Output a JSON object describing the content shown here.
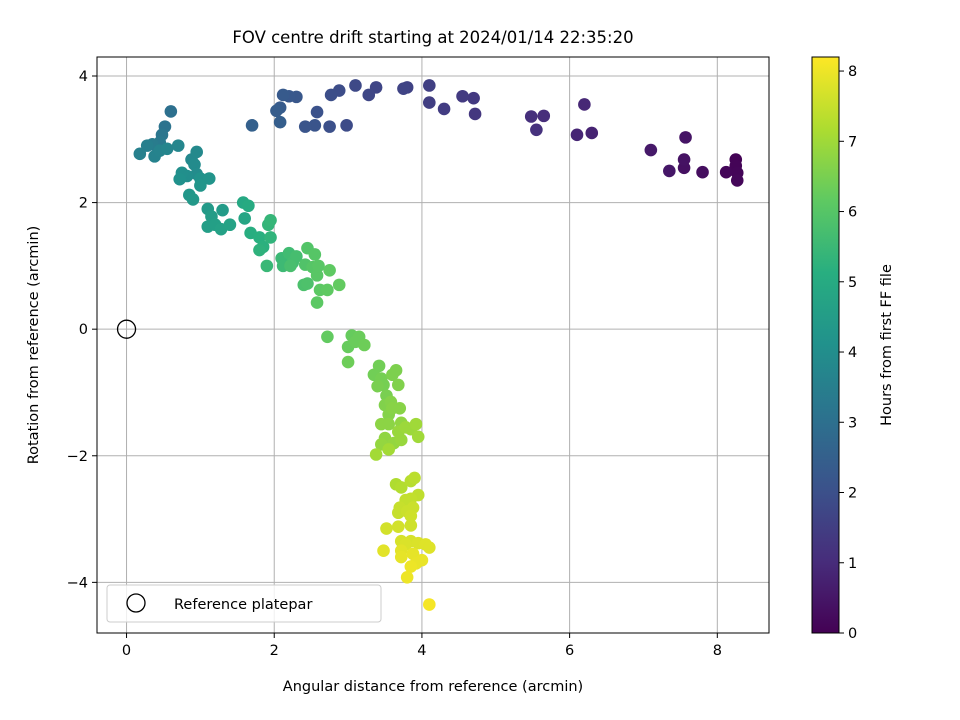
{
  "chart_data": {
    "type": "scatter",
    "title": "FOV centre drift starting at 2024/01/14 22:35:20",
    "xlabel": "Angular distance from reference (arcmin)",
    "ylabel": "Rotation from reference (arcmin)",
    "xlim": [
      -0.4,
      8.7
    ],
    "ylim": [
      -4.8,
      4.3
    ],
    "xticks": [
      0,
      2,
      4,
      6,
      8
    ],
    "xtick_labels": [
      "0",
      "2",
      "4",
      "6",
      "8"
    ],
    "yticks": [
      -4,
      -2,
      0,
      2,
      4
    ],
    "ytick_labels": [
      "−4",
      "−2",
      "0",
      "2",
      "4"
    ],
    "grid": true,
    "legend": {
      "placement": "lower-left",
      "entries": [
        {
          "label": "Reference platepar",
          "marker": "open-circle"
        }
      ]
    },
    "reference_point": {
      "x": 0,
      "y": 0
    },
    "colorbar": {
      "label": "Hours from first FF file",
      "colormap": "viridis",
      "range": [
        0,
        8.2
      ],
      "ticks": [
        0,
        1,
        2,
        3,
        4,
        5,
        6,
        7,
        8
      ],
      "tick_labels": [
        "0",
        "1",
        "2",
        "3",
        "4",
        "5",
        "6",
        "7",
        "8"
      ]
    },
    "points": [
      {
        "x": 8.25,
        "y": 2.68,
        "h": 0.05
      },
      {
        "x": 8.25,
        "y": 2.58,
        "h": 0.07
      },
      {
        "x": 8.27,
        "y": 2.47,
        "h": 0.1
      },
      {
        "x": 8.12,
        "y": 2.48,
        "h": 0.12
      },
      {
        "x": 8.27,
        "y": 2.35,
        "h": 0.14
      },
      {
        "x": 7.8,
        "y": 2.48,
        "h": 0.3
      },
      {
        "x": 7.55,
        "y": 2.55,
        "h": 0.35
      },
      {
        "x": 7.55,
        "y": 2.68,
        "h": 0.4
      },
      {
        "x": 7.57,
        "y": 3.03,
        "h": 0.45
      },
      {
        "x": 7.35,
        "y": 2.5,
        "h": 0.5
      },
      {
        "x": 7.1,
        "y": 2.83,
        "h": 0.55
      },
      {
        "x": 6.3,
        "y": 3.1,
        "h": 0.8
      },
      {
        "x": 6.1,
        "y": 3.07,
        "h": 0.85
      },
      {
        "x": 6.2,
        "y": 3.55,
        "h": 0.9
      },
      {
        "x": 5.65,
        "y": 3.37,
        "h": 1.05
      },
      {
        "x": 5.48,
        "y": 3.36,
        "h": 1.1
      },
      {
        "x": 5.55,
        "y": 3.15,
        "h": 1.15
      },
      {
        "x": 4.72,
        "y": 3.4,
        "h": 1.3
      },
      {
        "x": 4.7,
        "y": 3.65,
        "h": 1.35
      },
      {
        "x": 4.55,
        "y": 3.68,
        "h": 1.4
      },
      {
        "x": 4.3,
        "y": 3.48,
        "h": 1.45
      },
      {
        "x": 4.1,
        "y": 3.58,
        "h": 1.5
      },
      {
        "x": 4.1,
        "y": 3.85,
        "h": 1.55
      },
      {
        "x": 3.8,
        "y": 3.82,
        "h": 1.6
      },
      {
        "x": 3.75,
        "y": 3.8,
        "h": 1.65
      },
      {
        "x": 3.38,
        "y": 3.82,
        "h": 1.7
      },
      {
        "x": 3.28,
        "y": 3.7,
        "h": 1.75
      },
      {
        "x": 3.1,
        "y": 3.85,
        "h": 1.8
      },
      {
        "x": 2.98,
        "y": 3.22,
        "h": 1.85
      },
      {
        "x": 2.88,
        "y": 3.77,
        "h": 1.9
      },
      {
        "x": 2.77,
        "y": 3.7,
        "h": 1.95
      },
      {
        "x": 2.75,
        "y": 3.2,
        "h": 2.0
      },
      {
        "x": 2.58,
        "y": 3.43,
        "h": 2.05
      },
      {
        "x": 2.55,
        "y": 3.22,
        "h": 2.1
      },
      {
        "x": 2.42,
        "y": 3.2,
        "h": 2.15
      },
      {
        "x": 2.3,
        "y": 3.67,
        "h": 2.2
      },
      {
        "x": 2.2,
        "y": 3.68,
        "h": 2.25
      },
      {
        "x": 2.12,
        "y": 3.7,
        "h": 2.3
      },
      {
        "x": 2.08,
        "y": 3.5,
        "h": 2.35
      },
      {
        "x": 2.03,
        "y": 3.45,
        "h": 2.4
      },
      {
        "x": 2.08,
        "y": 3.27,
        "h": 2.45
      },
      {
        "x": 1.7,
        "y": 3.22,
        "h": 2.5
      },
      {
        "x": 0.6,
        "y": 3.44,
        "h": 3.0
      },
      {
        "x": 0.52,
        "y": 3.2,
        "h": 3.1
      },
      {
        "x": 0.48,
        "y": 3.07,
        "h": 3.2
      },
      {
        "x": 0.45,
        "y": 2.95,
        "h": 3.3
      },
      {
        "x": 0.35,
        "y": 2.92,
        "h": 3.4
      },
      {
        "x": 0.28,
        "y": 2.9,
        "h": 3.5
      },
      {
        "x": 0.18,
        "y": 2.77,
        "h": 3.55
      },
      {
        "x": 0.38,
        "y": 2.73,
        "h": 3.6
      },
      {
        "x": 0.45,
        "y": 2.82,
        "h": 3.65
      },
      {
        "x": 0.55,
        "y": 2.85,
        "h": 3.7
      },
      {
        "x": 0.7,
        "y": 2.9,
        "h": 3.75
      },
      {
        "x": 0.88,
        "y": 2.68,
        "h": 3.8
      },
      {
        "x": 0.95,
        "y": 2.8,
        "h": 3.85
      },
      {
        "x": 0.92,
        "y": 2.6,
        "h": 3.9
      },
      {
        "x": 0.95,
        "y": 2.45,
        "h": 3.95
      },
      {
        "x": 0.82,
        "y": 2.42,
        "h": 4.0
      },
      {
        "x": 0.75,
        "y": 2.47,
        "h": 4.05
      },
      {
        "x": 0.72,
        "y": 2.37,
        "h": 4.1
      },
      {
        "x": 1.0,
        "y": 2.38,
        "h": 4.15
      },
      {
        "x": 1.12,
        "y": 2.38,
        "h": 4.2
      },
      {
        "x": 1.0,
        "y": 2.27,
        "h": 4.25
      },
      {
        "x": 0.85,
        "y": 2.12,
        "h": 4.3
      },
      {
        "x": 0.9,
        "y": 2.05,
        "h": 4.35
      },
      {
        "x": 1.1,
        "y": 1.9,
        "h": 4.4
      },
      {
        "x": 1.3,
        "y": 1.88,
        "h": 4.45
      },
      {
        "x": 1.15,
        "y": 1.78,
        "h": 4.5
      },
      {
        "x": 1.1,
        "y": 1.62,
        "h": 4.55
      },
      {
        "x": 1.2,
        "y": 1.65,
        "h": 4.6
      },
      {
        "x": 1.28,
        "y": 1.58,
        "h": 4.65
      },
      {
        "x": 1.4,
        "y": 1.65,
        "h": 4.7
      },
      {
        "x": 1.6,
        "y": 1.75,
        "h": 4.8
      },
      {
        "x": 1.58,
        "y": 2.0,
        "h": 4.9
      },
      {
        "x": 1.65,
        "y": 1.95,
        "h": 5.0
      },
      {
        "x": 1.68,
        "y": 1.52,
        "h": 5.1
      },
      {
        "x": 1.8,
        "y": 1.45,
        "h": 5.15
      },
      {
        "x": 1.85,
        "y": 1.3,
        "h": 5.2
      },
      {
        "x": 1.8,
        "y": 1.25,
        "h": 5.25
      },
      {
        "x": 1.95,
        "y": 1.45,
        "h": 5.3
      },
      {
        "x": 1.92,
        "y": 1.65,
        "h": 5.35
      },
      {
        "x": 1.95,
        "y": 1.72,
        "h": 5.4
      },
      {
        "x": 1.9,
        "y": 1.0,
        "h": 5.45
      },
      {
        "x": 2.1,
        "y": 1.12,
        "h": 5.5
      },
      {
        "x": 2.12,
        "y": 1.0,
        "h": 5.55
      },
      {
        "x": 2.2,
        "y": 1.2,
        "h": 5.6
      },
      {
        "x": 2.25,
        "y": 1.05,
        "h": 5.65
      },
      {
        "x": 2.3,
        "y": 1.15,
        "h": 5.7
      },
      {
        "x": 2.22,
        "y": 1.0,
        "h": 5.75
      },
      {
        "x": 2.4,
        "y": 0.7,
        "h": 5.8
      },
      {
        "x": 2.45,
        "y": 0.72,
        "h": 5.85
      },
      {
        "x": 2.42,
        "y": 1.02,
        "h": 5.9
      },
      {
        "x": 2.45,
        "y": 1.28,
        "h": 5.95
      },
      {
        "x": 2.55,
        "y": 1.18,
        "h": 6.0
      },
      {
        "x": 2.52,
        "y": 0.98,
        "h": 6.0
      },
      {
        "x": 2.58,
        "y": 0.85,
        "h": 6.05
      },
      {
        "x": 2.6,
        "y": 1.0,
        "h": 6.05
      },
      {
        "x": 2.62,
        "y": 0.62,
        "h": 6.1
      },
      {
        "x": 2.58,
        "y": 0.42,
        "h": 6.1
      },
      {
        "x": 2.72,
        "y": 0.62,
        "h": 6.15
      },
      {
        "x": 2.75,
        "y": 0.93,
        "h": 6.15
      },
      {
        "x": 2.88,
        "y": 0.7,
        "h": 6.2
      },
      {
        "x": 2.72,
        "y": -0.12,
        "h": 6.2
      },
      {
        "x": 3.05,
        "y": -0.1,
        "h": 6.25
      },
      {
        "x": 3.0,
        "y": -0.28,
        "h": 6.25
      },
      {
        "x": 3.1,
        "y": -0.2,
        "h": 6.3
      },
      {
        "x": 3.15,
        "y": -0.12,
        "h": 6.3
      },
      {
        "x": 3.22,
        "y": -0.25,
        "h": 6.35
      },
      {
        "x": 3.0,
        "y": -0.52,
        "h": 6.35
      },
      {
        "x": 3.35,
        "y": -0.72,
        "h": 6.4
      },
      {
        "x": 3.42,
        "y": -0.58,
        "h": 6.4
      },
      {
        "x": 3.45,
        "y": -0.78,
        "h": 6.45
      },
      {
        "x": 3.48,
        "y": -0.88,
        "h": 6.45
      },
      {
        "x": 3.4,
        "y": -0.9,
        "h": 6.5
      },
      {
        "x": 3.52,
        "y": -1.05,
        "h": 6.5
      },
      {
        "x": 3.6,
        "y": -0.72,
        "h": 6.55
      },
      {
        "x": 3.65,
        "y": -0.65,
        "h": 6.55
      },
      {
        "x": 3.68,
        "y": -0.88,
        "h": 6.6
      },
      {
        "x": 3.5,
        "y": -1.2,
        "h": 6.6
      },
      {
        "x": 3.58,
        "y": -1.15,
        "h": 6.65
      },
      {
        "x": 3.55,
        "y": -1.35,
        "h": 6.65
      },
      {
        "x": 3.6,
        "y": -1.25,
        "h": 6.7
      },
      {
        "x": 3.7,
        "y": -1.25,
        "h": 6.7
      },
      {
        "x": 3.45,
        "y": -1.5,
        "h": 6.75
      },
      {
        "x": 3.55,
        "y": -1.5,
        "h": 6.75
      },
      {
        "x": 3.72,
        "y": -1.48,
        "h": 6.8
      },
      {
        "x": 3.5,
        "y": -1.72,
        "h": 6.8
      },
      {
        "x": 3.45,
        "y": -1.82,
        "h": 6.85
      },
      {
        "x": 3.62,
        "y": -1.8,
        "h": 6.85
      },
      {
        "x": 3.72,
        "y": -1.75,
        "h": 6.9
      },
      {
        "x": 3.68,
        "y": -1.62,
        "h": 6.9
      },
      {
        "x": 3.85,
        "y": -1.58,
        "h": 6.95
      },
      {
        "x": 3.78,
        "y": -1.55,
        "h": 6.95
      },
      {
        "x": 3.92,
        "y": -1.5,
        "h": 7.0
      },
      {
        "x": 3.95,
        "y": -1.7,
        "h": 7.0
      },
      {
        "x": 3.55,
        "y": -1.9,
        "h": 7.05
      },
      {
        "x": 3.38,
        "y": -1.98,
        "h": 7.05
      },
      {
        "x": 3.65,
        "y": -2.45,
        "h": 7.2
      },
      {
        "x": 3.72,
        "y": -2.5,
        "h": 7.25
      },
      {
        "x": 3.85,
        "y": -2.4,
        "h": 7.3
      },
      {
        "x": 3.9,
        "y": -2.35,
        "h": 7.35
      },
      {
        "x": 3.95,
        "y": -2.62,
        "h": 7.4
      },
      {
        "x": 3.85,
        "y": -2.68,
        "h": 7.45
      },
      {
        "x": 3.78,
        "y": -2.7,
        "h": 7.45
      },
      {
        "x": 3.7,
        "y": -2.82,
        "h": 7.5
      },
      {
        "x": 3.68,
        "y": -2.9,
        "h": 7.5
      },
      {
        "x": 3.8,
        "y": -2.88,
        "h": 7.55
      },
      {
        "x": 3.88,
        "y": -2.82,
        "h": 7.55
      },
      {
        "x": 3.85,
        "y": -2.95,
        "h": 7.6
      },
      {
        "x": 3.85,
        "y": -3.1,
        "h": 7.6
      },
      {
        "x": 3.68,
        "y": -3.12,
        "h": 7.65
      },
      {
        "x": 3.52,
        "y": -3.15,
        "h": 7.65
      },
      {
        "x": 3.72,
        "y": -3.35,
        "h": 7.7
      },
      {
        "x": 3.85,
        "y": -3.35,
        "h": 7.7
      },
      {
        "x": 3.78,
        "y": -3.4,
        "h": 7.75
      },
      {
        "x": 3.95,
        "y": -3.38,
        "h": 7.75
      },
      {
        "x": 4.05,
        "y": -3.4,
        "h": 7.8
      },
      {
        "x": 4.1,
        "y": -3.45,
        "h": 7.8
      },
      {
        "x": 3.72,
        "y": -3.5,
        "h": 7.85
      },
      {
        "x": 3.48,
        "y": -3.5,
        "h": 7.85
      },
      {
        "x": 3.72,
        "y": -3.6,
        "h": 7.9
      },
      {
        "x": 3.88,
        "y": -3.55,
        "h": 7.9
      },
      {
        "x": 4.0,
        "y": -3.65,
        "h": 7.95
      },
      {
        "x": 3.92,
        "y": -3.7,
        "h": 7.95
      },
      {
        "x": 3.85,
        "y": -3.75,
        "h": 8.0
      },
      {
        "x": 3.8,
        "y": -3.92,
        "h": 8.0
      },
      {
        "x": 4.1,
        "y": -4.35,
        "h": 8.1
      }
    ]
  }
}
